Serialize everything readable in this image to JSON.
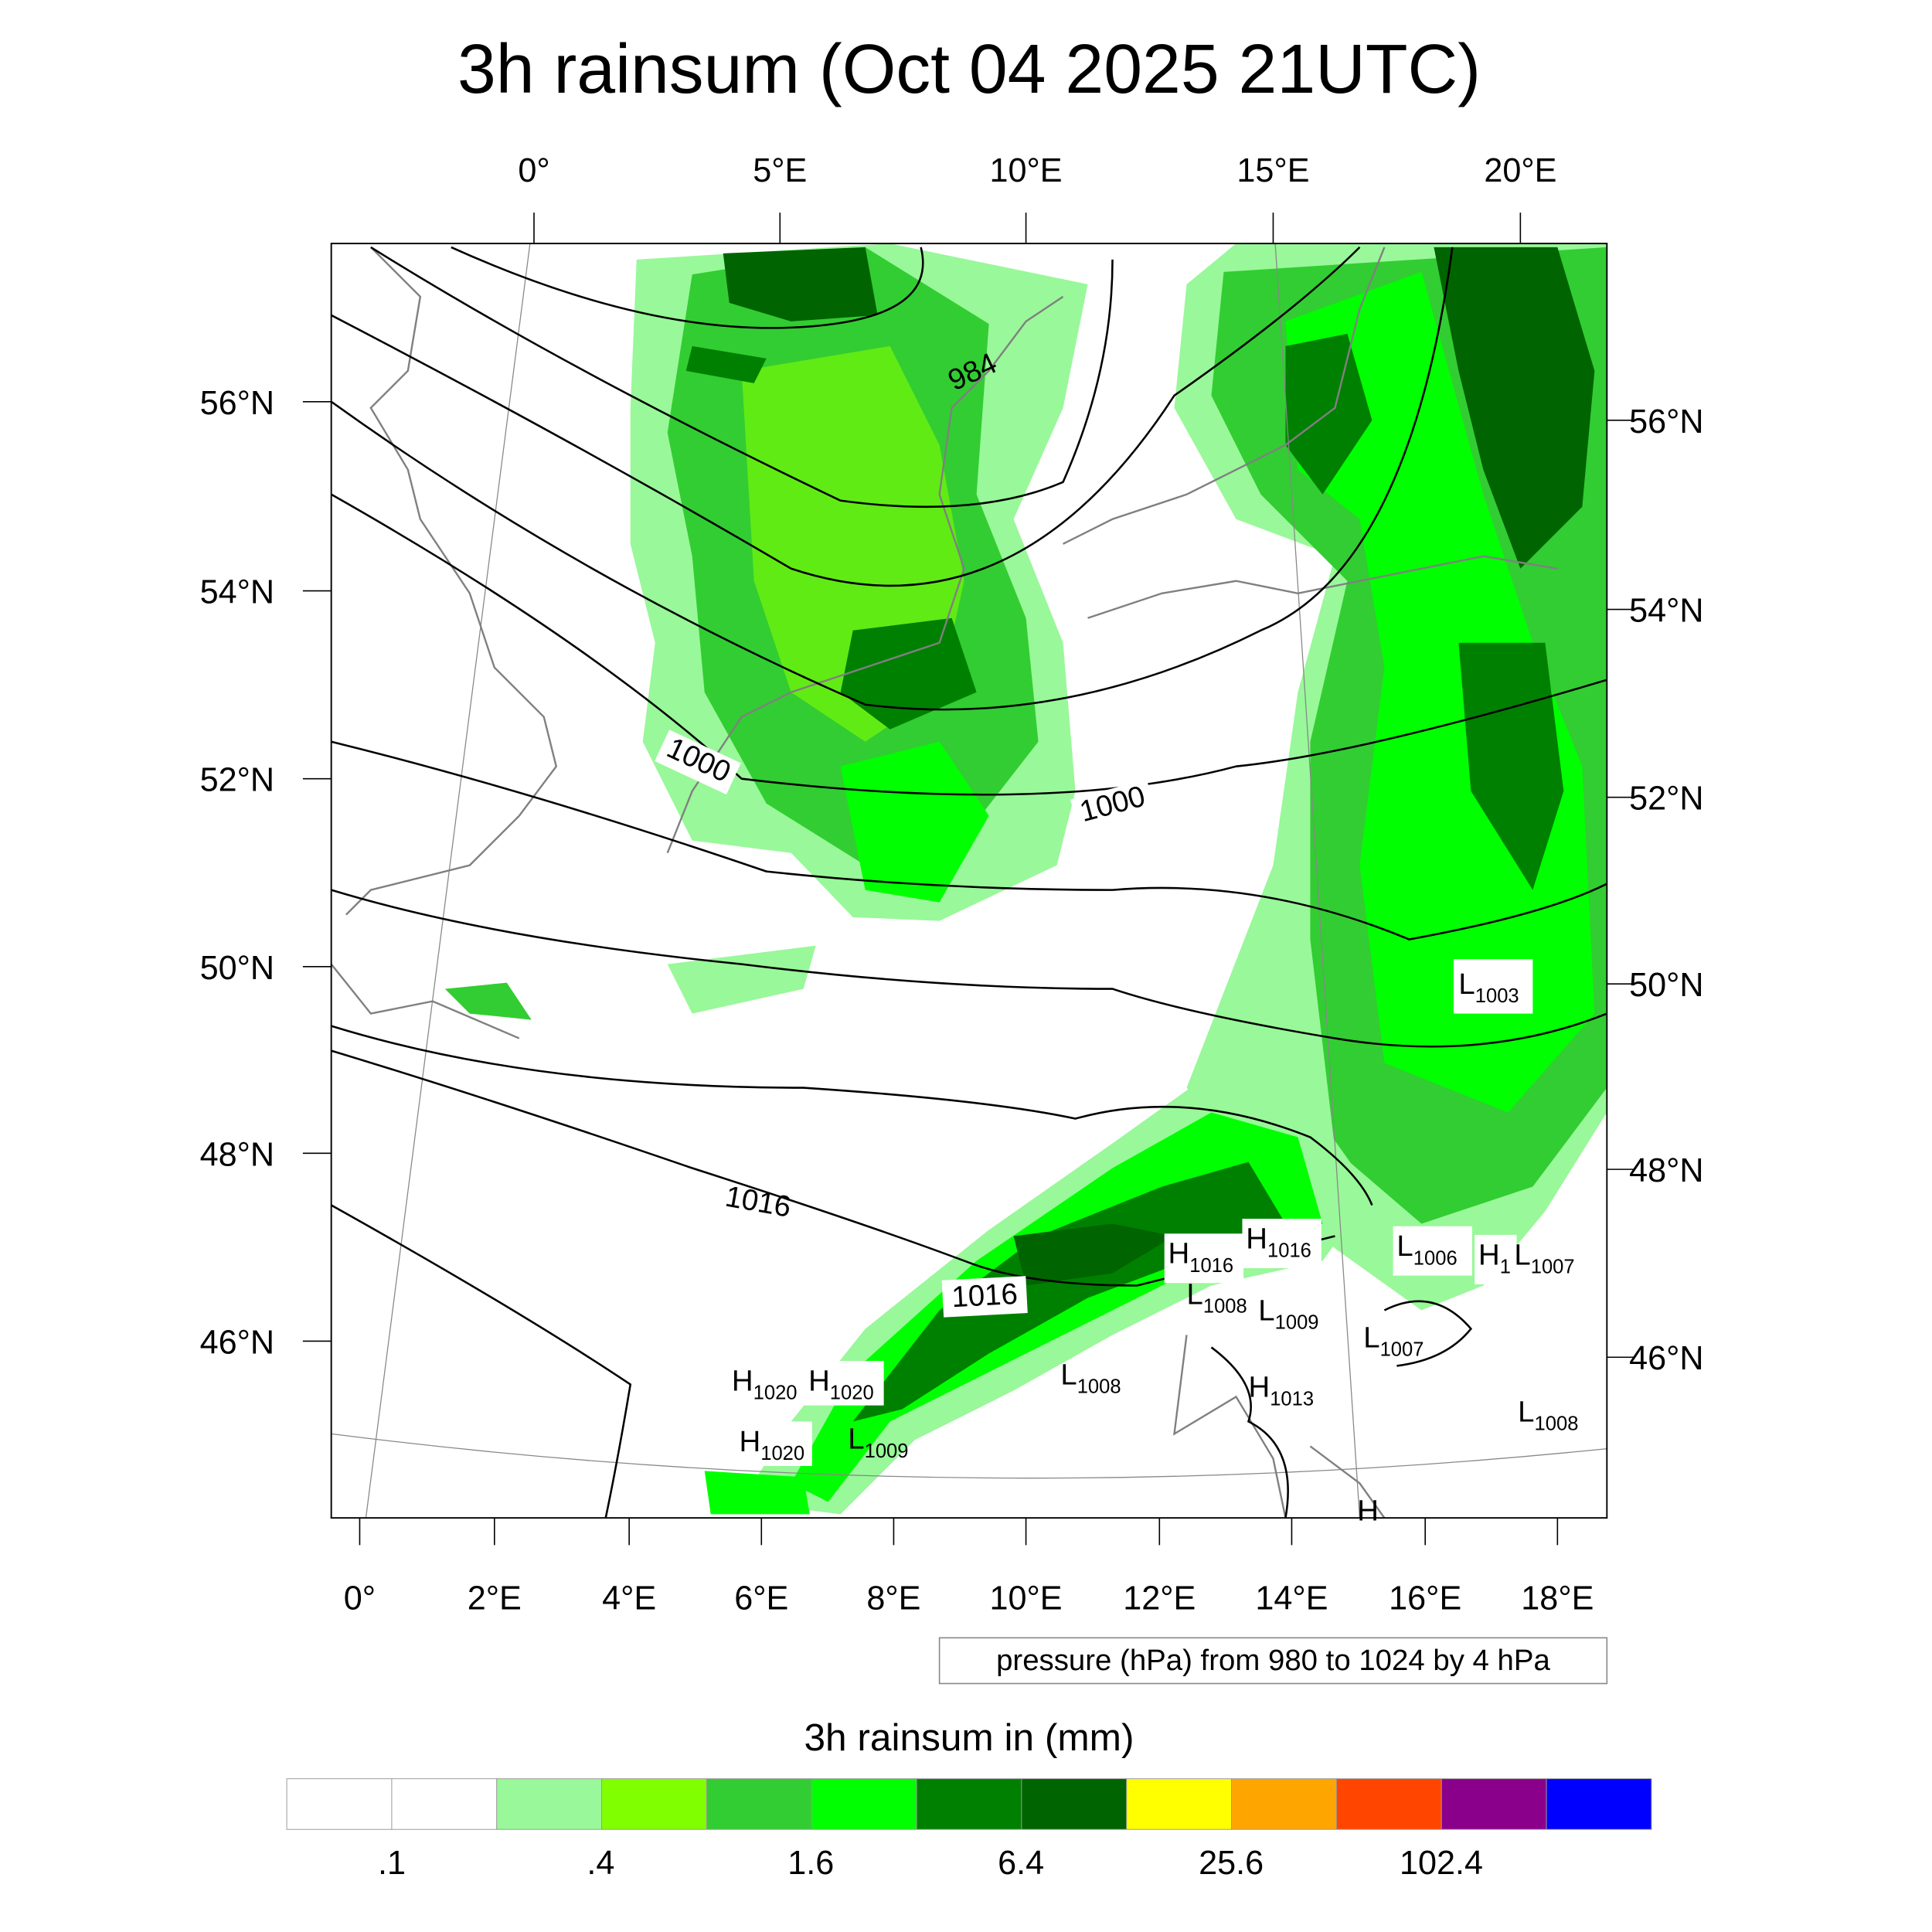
{
  "title": "3h rainsum (Oct 04 2025 21UTC)",
  "axes": {
    "top_lon": [
      "0°",
      "5°E",
      "10°E",
      "15°E",
      "20°E"
    ],
    "bottom_lon": [
      "0°",
      "2°E",
      "4°E",
      "6°E",
      "8°E",
      "10°E",
      "12°E",
      "14°E",
      "16°E",
      "18°E"
    ],
    "left_lat": [
      "56°N",
      "54°N",
      "52°N",
      "50°N",
      "48°N",
      "46°N"
    ],
    "right_lat": [
      "56°N",
      "54°N",
      "52°N",
      "50°N",
      "48°N",
      "46°N"
    ]
  },
  "contour_labels": [
    "984",
    "1000",
    "1000",
    "1016",
    "1016"
  ],
  "pressure_centers": [
    {
      "type": "H",
      "value": "1020"
    },
    {
      "type": "H",
      "value": "1020"
    },
    {
      "type": "H",
      "value": "1020"
    },
    {
      "type": "L",
      "value": "1009"
    },
    {
      "type": "L",
      "value": "1008"
    },
    {
      "type": "H",
      "value": "1016"
    },
    {
      "type": "H",
      "value": "1016"
    },
    {
      "type": "L",
      "value": "1008"
    },
    {
      "type": "L",
      "value": "1009"
    },
    {
      "type": "L",
      "value": "1006"
    },
    {
      "type": "H",
      "value": "1"
    },
    {
      "type": "L",
      "value": "1007"
    },
    {
      "type": "L",
      "value": "1007"
    },
    {
      "type": "H",
      "value": "1013"
    },
    {
      "type": "L",
      "value": "1008"
    },
    {
      "type": "L",
      "value": "1003"
    },
    {
      "type": "H",
      "value": ""
    }
  ],
  "contour_info": "pressure (hPa) from 980 to 1024 by 4 hPa",
  "colorbar": {
    "title": "3h rainsum in (mm)",
    "labels": [
      ".1",
      ".4",
      "1.6",
      "6.4",
      "25.6",
      "102.4"
    ],
    "colors": [
      "#ffffff",
      "#ffffff",
      "#99f899",
      "#80ff00",
      "#32cd32",
      "#00ff00",
      "#008000",
      "#006400",
      "#ffff00",
      "#ffa500",
      "#ff4500",
      "#8b008b",
      "#0000ff"
    ]
  }
}
